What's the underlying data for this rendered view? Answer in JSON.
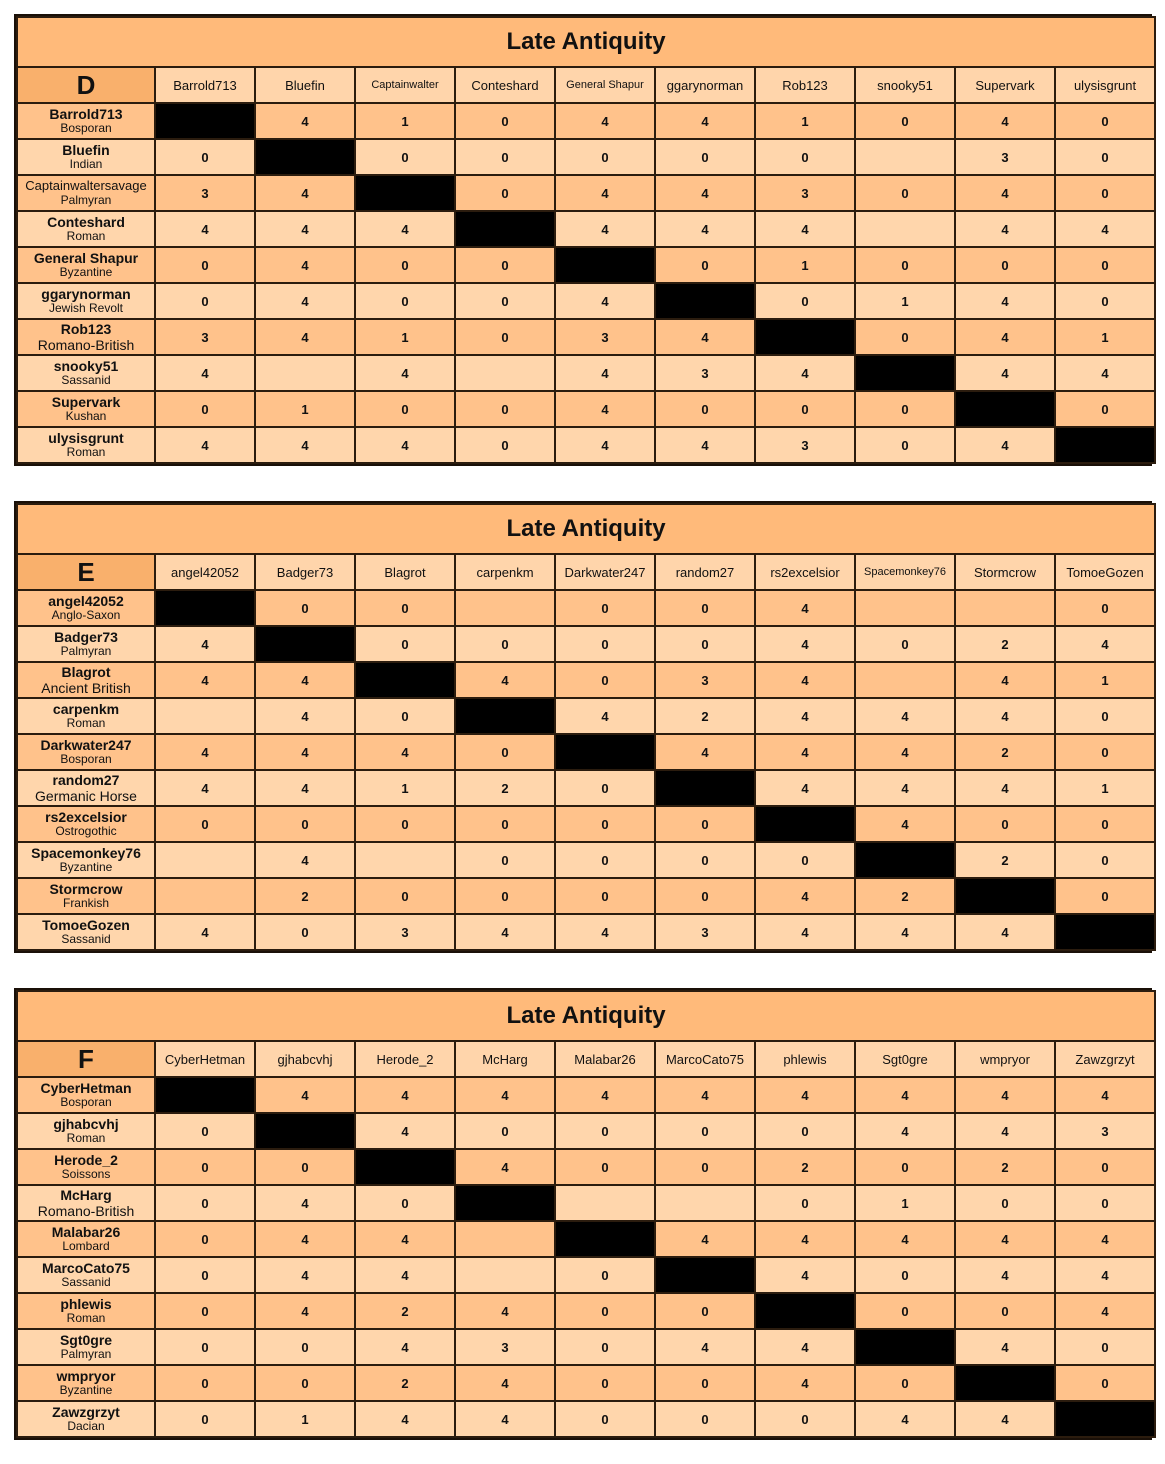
{
  "tables": [
    {
      "title": "Late Antiquity",
      "group": "D",
      "columns": [
        "Barrold713",
        "Bluefin",
        "Captainwalter",
        "Conteshard",
        "General Shapur",
        "ggarynorman",
        "Rob123",
        "snooky51",
        "Supervark",
        "ulysisgrunt"
      ],
      "rows": [
        {
          "player": "Barrold713",
          "faction": "Bosporan",
          "scores": [
            "",
            "4",
            "1",
            "0",
            "4",
            "4",
            "1",
            "0",
            "4",
            "0"
          ]
        },
        {
          "player": "Bluefin",
          "faction": "Indian",
          "scores": [
            "0",
            "",
            "0",
            "0",
            "0",
            "0",
            "0",
            "",
            "3",
            "0"
          ]
        },
        {
          "player": "Captainwaltersavage",
          "faction": "Palmyran",
          "scores": [
            "3",
            "4",
            "",
            "0",
            "4",
            "4",
            "3",
            "0",
            "4",
            "0"
          ]
        },
        {
          "player": "Conteshard",
          "faction": "Roman",
          "scores": [
            "4",
            "4",
            "4",
            "",
            "4",
            "4",
            "4",
            "",
            "4",
            "4"
          ]
        },
        {
          "player": "General Shapur",
          "faction": "Byzantine",
          "scores": [
            "0",
            "4",
            "0",
            "0",
            "",
            "0",
            "1",
            "0",
            "0",
            "0"
          ]
        },
        {
          "player": "ggarynorman",
          "faction": "Jewish Revolt",
          "scores": [
            "0",
            "4",
            "0",
            "0",
            "4",
            "",
            "0",
            "1",
            "4",
            "0"
          ]
        },
        {
          "player": "Rob123",
          "faction": "Romano-British",
          "scores": [
            "3",
            "4",
            "1",
            "0",
            "3",
            "4",
            "",
            "0",
            "4",
            "1"
          ]
        },
        {
          "player": "snooky51",
          "faction": "Sassanid",
          "scores": [
            "4",
            "",
            "4",
            "",
            "4",
            "3",
            "4",
            "",
            "4",
            "4"
          ]
        },
        {
          "player": "Supervark",
          "faction": "Kushan",
          "scores": [
            "0",
            "1",
            "0",
            "0",
            "4",
            "0",
            "0",
            "0",
            "",
            "0"
          ]
        },
        {
          "player": "ulysisgrunt",
          "faction": "Roman",
          "scores": [
            "4",
            "4",
            "4",
            "0",
            "4",
            "4",
            "3",
            "0",
            "4",
            ""
          ]
        }
      ]
    },
    {
      "title": "Late Antiquity",
      "group": "E",
      "columns": [
        "angel42052",
        "Badger73",
        "Blagrot",
        "carpenkm",
        "Darkwater247",
        "random27",
        "rs2excelsior",
        "Spacemonkey76",
        "Stormcrow",
        "TomoeGozen"
      ],
      "rows": [
        {
          "player": "angel42052",
          "faction": "Anglo-Saxon",
          "scores": [
            "",
            "0",
            "0",
            "",
            "0",
            "0",
            "4",
            "",
            "",
            "0"
          ]
        },
        {
          "player": "Badger73",
          "faction": "Palmyran",
          "scores": [
            "4",
            "",
            "0",
            "0",
            "0",
            "0",
            "4",
            "0",
            "2",
            "4"
          ]
        },
        {
          "player": "Blagrot",
          "faction": "Ancient British",
          "scores": [
            "4",
            "4",
            "",
            "4",
            "0",
            "3",
            "4",
            "",
            "4",
            "1"
          ]
        },
        {
          "player": "carpenkm",
          "faction": "Roman",
          "scores": [
            "",
            "4",
            "0",
            "",
            "4",
            "2",
            "4",
            "4",
            "4",
            "0"
          ]
        },
        {
          "player": "Darkwater247",
          "faction": "Bosporan",
          "scores": [
            "4",
            "4",
            "4",
            "0",
            "",
            "4",
            "4",
            "4",
            "2",
            "0"
          ]
        },
        {
          "player": "random27",
          "faction": "Germanic Horse",
          "scores": [
            "4",
            "4",
            "1",
            "2",
            "0",
            "",
            "4",
            "4",
            "4",
            "1"
          ]
        },
        {
          "player": "rs2excelsior",
          "faction": "Ostrogothic",
          "scores": [
            "0",
            "0",
            "0",
            "0",
            "0",
            "0",
            "",
            "4",
            "0",
            "0"
          ]
        },
        {
          "player": "Spacemonkey76",
          "faction": "Byzantine",
          "scores": [
            "",
            "4",
            "",
            "0",
            "0",
            "0",
            "0",
            "",
            "2",
            "0"
          ]
        },
        {
          "player": "Stormcrow",
          "faction": "Frankish",
          "scores": [
            "",
            "2",
            "0",
            "0",
            "0",
            "0",
            "4",
            "2",
            "",
            "0"
          ]
        },
        {
          "player": "TomoeGozen",
          "faction": "Sassanid",
          "scores": [
            "4",
            "0",
            "3",
            "4",
            "4",
            "3",
            "4",
            "4",
            "4",
            ""
          ]
        }
      ]
    },
    {
      "title": "Late Antiquity",
      "group": "F",
      "columns": [
        "CyberHetman",
        "gjhabcvhj",
        "Herode_2",
        "McHarg",
        "Malabar26",
        "MarcoCato75",
        "phlewis",
        "Sgt0gre",
        "wmpryor",
        "Zawzgrzyt"
      ],
      "rows": [
        {
          "player": "CyberHetman",
          "faction": "Bosporan",
          "scores": [
            "",
            "4",
            "4",
            "4",
            "4",
            "4",
            "4",
            "4",
            "4",
            "4"
          ]
        },
        {
          "player": "gjhabcvhj",
          "faction": "Roman",
          "scores": [
            "0",
            "",
            "4",
            "0",
            "0",
            "0",
            "0",
            "4",
            "4",
            "3"
          ]
        },
        {
          "player": "Herode_2",
          "faction": "Soissons",
          "scores": [
            "0",
            "0",
            "",
            "4",
            "0",
            "0",
            "2",
            "0",
            "2",
            "0"
          ]
        },
        {
          "player": "McHarg",
          "faction": "Romano-British",
          "scores": [
            "0",
            "4",
            "0",
            "",
            "",
            "",
            "0",
            "1",
            "0",
            "0"
          ]
        },
        {
          "player": "Malabar26",
          "faction": "Lombard",
          "scores": [
            "0",
            "4",
            "4",
            "",
            "",
            "4",
            "4",
            "4",
            "4",
            "4"
          ]
        },
        {
          "player": "MarcoCato75",
          "faction": "Sassanid",
          "scores": [
            "0",
            "4",
            "4",
            "",
            "0",
            "",
            "4",
            "0",
            "4",
            "4"
          ]
        },
        {
          "player": "phlewis",
          "faction": "Roman",
          "scores": [
            "0",
            "4",
            "2",
            "4",
            "0",
            "0",
            "",
            "0",
            "0",
            "4"
          ]
        },
        {
          "player": "Sgt0gre",
          "faction": "Palmyran",
          "scores": [
            "0",
            "0",
            "4",
            "3",
            "0",
            "4",
            "4",
            "",
            "4",
            "0"
          ]
        },
        {
          "player": "wmpryor",
          "faction": "Byzantine",
          "scores": [
            "0",
            "0",
            "2",
            "4",
            "0",
            "0",
            "4",
            "0",
            "",
            "0"
          ]
        },
        {
          "player": "Zawzgrzyt",
          "faction": "Dacian",
          "scores": [
            "0",
            "1",
            "4",
            "4",
            "0",
            "0",
            "0",
            "4",
            "4",
            ""
          ]
        }
      ]
    }
  ],
  "colors": {
    "title": "#FFBA7A",
    "corner": "#F9B06C",
    "header": "#FFD5AB",
    "row_dark": "#FFC28B",
    "row_light": "#FFD6AC",
    "diagonal": "#000000"
  }
}
